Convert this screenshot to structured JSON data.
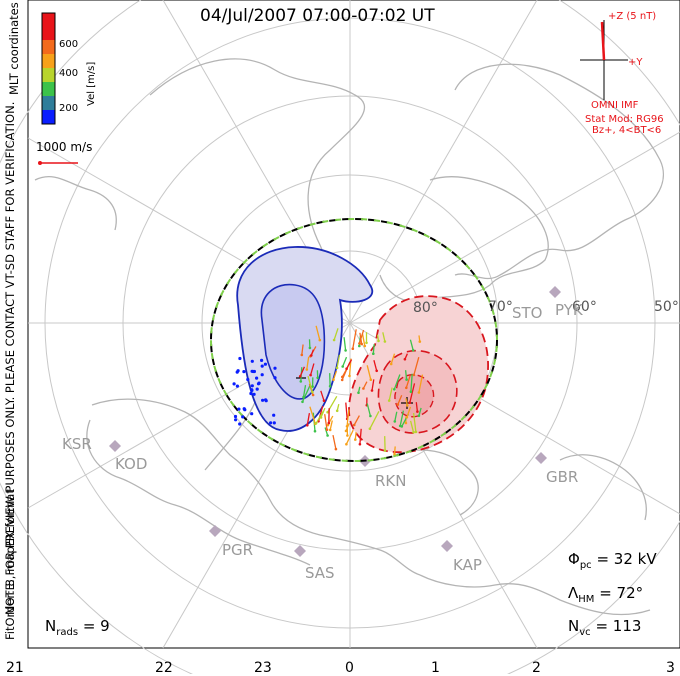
{
  "title": "04/Jul/2007 07:00-07:02 UT",
  "side_notes": {
    "coords": "MLT coordinates",
    "preview": "NOTE: FOR PREVIEW PURPOSES ONLY. PLEASE CONTACT VT-SD STAFF FOR VERIFICATION.",
    "fit": "FitOrder: 8, mapEX format"
  },
  "velocity_scale": {
    "label": "Vel [m/s]",
    "ticks": [
      "200",
      "400",
      "600"
    ],
    "colors": [
      "#0a1eff",
      "#2f7d9a",
      "#3cc24a",
      "#b8d42c",
      "#f7a11a",
      "#f36a1c",
      "#e8141a"
    ]
  },
  "reference_vector": "1000 m/s",
  "imf": {
    "z_label": "+Z (5 nT)",
    "y_label": "+Y",
    "source": "OMNI IMF",
    "model": "Stat Mod: RG96",
    "condition": "Bz+, 4<BT<6"
  },
  "lat_labels": [
    "80°",
    "70°",
    "60°",
    "50°"
  ],
  "stations": [
    "STO",
    "PYK",
    "KSR",
    "KOD",
    "PGR",
    "SAS",
    "KAP",
    "RKN",
    "GBR"
  ],
  "stats": {
    "phi_pc_label": "Φ",
    "phi_pc_sub": "pc",
    "phi_pc_value": "= 32 kV",
    "lambda_label": "Λ",
    "lambda_sub": "HM",
    "lambda_value": "= 72°",
    "nvc_label": "N",
    "nvc_sub": "vc",
    "nvc_value": "= 113",
    "nrads_label": "N",
    "nrads_sub": "rads",
    "nrads_value": "= 9"
  },
  "mlt_ticks": [
    "21",
    "22",
    "23",
    "0",
    "1",
    "2",
    "3"
  ],
  "colors": {
    "negative_cell": "#1b2bb8",
    "positive_cell": "#d8161e",
    "grid": "#c8c8c8",
    "coast": "#b4b4b4"
  }
}
